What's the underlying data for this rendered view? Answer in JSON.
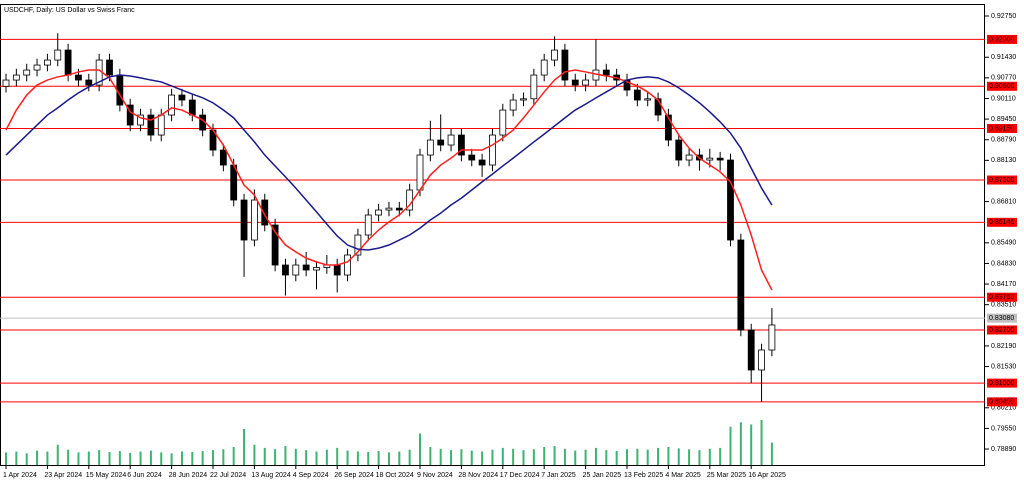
{
  "chart_data": {
    "type": "candlestick",
    "title": "USDCHF, Daily:  US Dollar vs Swiss Franc",
    "categories": [
      "1 Apr 2024",
      null,
      null,
      null,
      "23 Apr 2024",
      null,
      null,
      null,
      "15 May 2024",
      null,
      null,
      null,
      "6 Jun 2024",
      null,
      null,
      null,
      "28 Jun 2024",
      null,
      null,
      null,
      "22 Jul 2024",
      null,
      null,
      null,
      "13 Aug 2024",
      null,
      null,
      null,
      "4 Sep 2024",
      null,
      null,
      null,
      "26 Sep 2024",
      null,
      null,
      null,
      "18 Oct 2024",
      null,
      null,
      null,
      "9 Nov 2024",
      null,
      null,
      null,
      "28 Nov 2024",
      null,
      null,
      null,
      "17 Dec 2024",
      null,
      null,
      null,
      "7 Jan 2025",
      null,
      null,
      null,
      "25 Jan 2025",
      null,
      null,
      null,
      "13 Feb 2025",
      null,
      null,
      null,
      "4 Mar 2025",
      null,
      null,
      null,
      "25 Mar 2025",
      null,
      null,
      null,
      "16 Apr 2025",
      null,
      null
    ],
    "open": [
      0.905,
      0.907,
      0.9086,
      0.9102,
      0.9118,
      0.9134,
      0.9166,
      0.9086,
      0.907,
      0.9054,
      0.9134,
      0.9086,
      0.899,
      0.8926,
      0.8958,
      0.8894,
      0.8958,
      0.9022,
      0.9006,
      0.8958,
      0.891,
      0.8846,
      0.8798,
      0.8686,
      0.8558,
      0.8686,
      0.8606,
      0.8478,
      0.8446,
      0.8478,
      0.8462,
      0.847,
      0.8478,
      0.8446,
      0.851,
      0.8574,
      0.8638,
      0.8654,
      0.866,
      0.8654,
      0.8718,
      0.883,
      0.8878,
      0.8862,
      0.8894,
      0.883,
      0.8814,
      0.8798,
      0.8894,
      0.8974,
      0.9006,
      0.901,
      0.9086,
      0.9134,
      0.9166,
      0.907,
      0.9054,
      0.907,
      0.9102,
      0.9086,
      0.907,
      0.9038,
      0.9006,
      0.901,
      0.8958,
      0.8878,
      0.8814,
      0.883,
      0.8814,
      0.882,
      0.8814,
      0.8558,
      0.827,
      0.8142,
      0.8206
    ],
    "high": [
      0.909,
      0.9106,
      0.9122,
      0.9138,
      0.9154,
      0.922,
      0.9186,
      0.9106,
      0.909,
      0.9154,
      0.9154,
      0.9106,
      0.901,
      0.8978,
      0.8978,
      0.8978,
      0.9042,
      0.9042,
      0.9026,
      0.8978,
      0.893,
      0.8866,
      0.8818,
      0.8706,
      0.872,
      0.8706,
      0.8626,
      0.8498,
      0.8498,
      0.852,
      0.849,
      0.851,
      0.8498,
      0.853,
      0.8594,
      0.8658,
      0.8674,
      0.868,
      0.868,
      0.8738,
      0.885,
      0.894,
      0.896,
      0.8914,
      0.8914,
      0.885,
      0.8834,
      0.8914,
      0.8994,
      0.9026,
      0.903,
      0.9106,
      0.9154,
      0.921,
      0.9186,
      0.909,
      0.909,
      0.92,
      0.9122,
      0.9106,
      0.909,
      0.9058,
      0.903,
      0.903,
      0.8978,
      0.8898,
      0.885,
      0.885,
      0.885,
      0.884,
      0.8834,
      0.8578,
      0.829,
      0.8226,
      0.834
    ],
    "low": [
      0.903,
      0.905,
      0.9066,
      0.9082,
      0.9098,
      0.9114,
      0.9066,
      0.905,
      0.9034,
      0.9034,
      0.9066,
      0.897,
      0.8906,
      0.8906,
      0.8874,
      0.8874,
      0.8938,
      0.8986,
      0.8938,
      0.889,
      0.8826,
      0.8778,
      0.8666,
      0.844,
      0.8538,
      0.8586,
      0.8458,
      0.838,
      0.8426,
      0.8442,
      0.84,
      0.845,
      0.839,
      0.8426,
      0.849,
      0.8554,
      0.8618,
      0.8634,
      0.8634,
      0.8634,
      0.8698,
      0.881,
      0.8842,
      0.8842,
      0.881,
      0.8794,
      0.876,
      0.8778,
      0.8874,
      0.8954,
      0.8986,
      0.899,
      0.9066,
      0.9114,
      0.905,
      0.9034,
      0.9034,
      0.905,
      0.9066,
      0.905,
      0.9018,
      0.8986,
      0.8986,
      0.8938,
      0.8858,
      0.8794,
      0.8794,
      0.878,
      0.879,
      0.878,
      0.8538,
      0.825,
      0.81,
      0.804,
      0.8186
    ],
    "close": [
      0.907,
      0.9086,
      0.9102,
      0.9118,
      0.9134,
      0.9166,
      0.9086,
      0.907,
      0.9054,
      0.9134,
      0.9086,
      0.899,
      0.8926,
      0.8958,
      0.8894,
      0.8958,
      0.9022,
      0.9006,
      0.8958,
      0.891,
      0.8846,
      0.8798,
      0.8686,
      0.8558,
      0.8686,
      0.8606,
      0.8478,
      0.8446,
      0.8478,
      0.8462,
      0.847,
      0.8478,
      0.8446,
      0.851,
      0.8574,
      0.8638,
      0.8654,
      0.866,
      0.8654,
      0.8718,
      0.883,
      0.8878,
      0.8862,
      0.8894,
      0.883,
      0.8814,
      0.8798,
      0.8894,
      0.8974,
      0.9006,
      0.901,
      0.9086,
      0.9134,
      0.9166,
      0.907,
      0.9054,
      0.907,
      0.9102,
      0.9086,
      0.907,
      0.9038,
      0.9006,
      0.901,
      0.8958,
      0.8878,
      0.8814,
      0.883,
      0.8814,
      0.882,
      0.8814,
      0.8558,
      0.827,
      0.8142,
      0.8206,
      0.8286
    ],
    "up_color": "#ffffff",
    "down_color": "#000000",
    "volume": {
      "color": "#3cb371",
      "values": [
        28,
        30,
        26,
        32,
        30,
        45,
        34,
        28,
        30,
        33,
        29,
        31,
        27,
        30,
        32,
        28,
        26,
        30,
        29,
        31,
        33,
        35,
        40,
        80,
        45,
        38,
        35,
        42,
        36,
        33,
        30,
        34,
        38,
        32,
        30,
        29,
        31,
        28,
        30,
        34,
        70,
        40,
        36,
        33,
        35,
        32,
        30,
        34,
        38,
        36,
        33,
        35,
        40,
        42,
        36,
        32,
        34,
        38,
        33,
        31,
        35,
        36,
        34,
        38,
        40,
        37,
        35,
        33,
        36,
        38,
        85,
        95,
        90,
        100,
        50
      ]
    },
    "moving_averages": [
      {
        "color": "#ff2020",
        "values": [
          0.891,
          0.8974,
          0.9022,
          0.9054,
          0.907,
          0.908,
          0.9086,
          0.9096,
          0.9102,
          0.9102,
          0.9077,
          0.9022,
          0.8968,
          0.8949,
          0.8942,
          0.8958,
          0.8981,
          0.8974,
          0.8958,
          0.8942,
          0.891,
          0.8862,
          0.8798,
          0.8734,
          0.8702,
          0.8638,
          0.8584,
          0.8542,
          0.852,
          0.85,
          0.8488,
          0.8478,
          0.8478,
          0.8488,
          0.852,
          0.8558,
          0.859,
          0.8616,
          0.8638,
          0.867,
          0.8718,
          0.8766,
          0.8798,
          0.882,
          0.8846,
          0.8846,
          0.8846,
          0.8862,
          0.8884,
          0.891,
          0.8949,
          0.899,
          0.9032,
          0.907,
          0.9096,
          0.9102,
          0.9096,
          0.9089,
          0.9083,
          0.9077,
          0.9064,
          0.9051,
          0.9032,
          0.9006,
          0.8949,
          0.8894,
          0.8852,
          0.882,
          0.8798,
          0.8776,
          0.8744,
          0.867,
          0.8574,
          0.8462,
          0.8398
        ]
      },
      {
        "color": "#1a1a8c",
        "values": [
          0.883,
          0.8862,
          0.8894,
          0.8926,
          0.8958,
          0.8981,
          0.9006,
          0.9029,
          0.9048,
          0.9064,
          0.908,
          0.9086,
          0.9083,
          0.9077,
          0.907,
          0.9064,
          0.9051,
          0.9038,
          0.9025,
          0.9013,
          0.8997,
          0.8974,
          0.8949,
          0.891,
          0.8872,
          0.883,
          0.8795,
          0.876,
          0.8724,
          0.8686,
          0.8648,
          0.8609,
          0.8571,
          0.8542,
          0.8529,
          0.8526,
          0.8532,
          0.8542,
          0.8558,
          0.8574,
          0.8596,
          0.8622,
          0.8644,
          0.867,
          0.8692,
          0.8718,
          0.8744,
          0.8769,
          0.8795,
          0.882,
          0.8846,
          0.8872,
          0.8897,
          0.8923,
          0.8949,
          0.8974,
          0.8993,
          0.9013,
          0.9032,
          0.9051,
          0.907,
          0.9077,
          0.908,
          0.9077,
          0.9064,
          0.9045,
          0.9022,
          0.8997,
          0.8968,
          0.8936,
          0.89,
          0.8852,
          0.8788,
          0.8724,
          0.867
        ]
      }
    ],
    "ylim": [
      0.78379,
      0.93102
    ],
    "yticks": [
      {
        "value": 0.9275,
        "label": "0.92750"
      },
      {
        "value": 0.9143,
        "label": "0.91430"
      },
      {
        "value": 0.9077,
        "label": "0.90770"
      },
      {
        "value": 0.9011,
        "label": "0.90110"
      },
      {
        "value": 0.8945,
        "label": "0.89450"
      },
      {
        "value": 0.8879,
        "label": "0.88790"
      },
      {
        "value": 0.8813,
        "label": "0.88130"
      },
      {
        "value": 0.8681,
        "label": "0.86810"
      },
      {
        "value": 0.8549,
        "label": "0.85490"
      },
      {
        "value": 0.8483,
        "label": "0.84830"
      },
      {
        "value": 0.8417,
        "label": "0.84170"
      },
      {
        "value": 0.8351,
        "label": "0.83510"
      },
      {
        "value": 0.8219,
        "label": "0.82190"
      },
      {
        "value": 0.8153,
        "label": "0.81530"
      },
      {
        "value": 0.8021,
        "label": "0.80210"
      },
      {
        "value": 0.7955,
        "label": "0.79550"
      },
      {
        "value": 0.7889,
        "label": "0.78890"
      }
    ],
    "levels": {
      "color": "#ff0000",
      "items": [
        {
          "value": 0.92,
          "label": "0.92000"
        },
        {
          "value": 0.905,
          "label": "0.90500"
        },
        {
          "value": 0.8915,
          "label": "0.89150"
        },
        {
          "value": 0.875,
          "label": "0.87500"
        },
        {
          "value": 0.86146,
          "label": "0.86146"
        },
        {
          "value": 0.8375,
          "label": "0.83750"
        },
        {
          "value": 0.827,
          "label": "0.82700"
        },
        {
          "value": 0.81,
          "label": "0.81000"
        },
        {
          "value": 0.804,
          "label": "0.80400"
        }
      ]
    },
    "price_line": {
      "value": 0.8308,
      "label": "0.83080",
      "color": "#c0c0c0"
    }
  }
}
